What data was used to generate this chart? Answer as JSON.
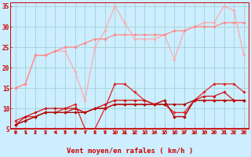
{
  "x": [
    0,
    1,
    2,
    3,
    4,
    5,
    6,
    7,
    8,
    9,
    10,
    11,
    12,
    13,
    14,
    15,
    16,
    17,
    18,
    19,
    20,
    21,
    22,
    23
  ],
  "series": [
    {
      "color": "#ffaaaa",
      "linewidth": 0.9,
      "marker": "D",
      "markersize": 1.8,
      "values": [
        15,
        16,
        23,
        23,
        24,
        24,
        19,
        12,
        25,
        29,
        35,
        31,
        27,
        27,
        27,
        28,
        22,
        29,
        30,
        31,
        31,
        35,
        34,
        23
      ]
    },
    {
      "color": "#ff8888",
      "linewidth": 0.9,
      "marker": "D",
      "markersize": 1.8,
      "values": [
        15,
        16,
        23,
        23,
        24,
        25,
        25,
        26,
        27,
        27,
        28,
        28,
        28,
        28,
        28,
        28,
        29,
        29,
        30,
        30,
        30,
        31,
        31,
        31
      ]
    },
    {
      "color": "#dd2222",
      "linewidth": 0.9,
      "marker": "D",
      "markersize": 1.8,
      "values": [
        7,
        8,
        8,
        9,
        9,
        10,
        11,
        5,
        5,
        10,
        16,
        16,
        14,
        12,
        11,
        11,
        9,
        9,
        12,
        14,
        16,
        16,
        16,
        14
      ]
    },
    {
      "color": "#cc1111",
      "linewidth": 0.9,
      "marker": "D",
      "markersize": 1.8,
      "values": [
        6,
        8,
        9,
        10,
        10,
        10,
        10,
        9,
        10,
        11,
        12,
        12,
        12,
        12,
        11,
        12,
        8,
        8,
        12,
        13,
        13,
        14,
        12,
        12
      ]
    },
    {
      "color": "#aa0000",
      "linewidth": 0.9,
      "marker": "D",
      "markersize": 1.8,
      "values": [
        6,
        7,
        8,
        9,
        9,
        9,
        9,
        9,
        10,
        10,
        11,
        11,
        11,
        11,
        11,
        11,
        11,
        11,
        12,
        12,
        12,
        12,
        12,
        12
      ]
    },
    {
      "color": "#bb1111",
      "linewidth": 0.9,
      "marker": "D",
      "markersize": 1.8,
      "values": [
        6,
        7,
        8,
        9,
        9,
        9,
        10,
        9,
        10,
        10,
        11,
        11,
        11,
        11,
        11,
        12,
        8,
        8,
        12,
        12,
        12,
        12,
        12,
        12
      ]
    }
  ],
  "ylim": [
    5,
    36
  ],
  "yticks": [
    5,
    10,
    15,
    20,
    25,
    30,
    35
  ],
  "xlim": [
    -0.5,
    23.5
  ],
  "xlabel": "Vent moyen/en rafales ( km/h )",
  "xlabel_fontsize": 6.5,
  "xlabel_color": "#cc0000",
  "tick_color": "#cc0000",
  "axis_color": "#cc0000",
  "bg_color": "#cceeff",
  "grid_color": "#99cccc",
  "arrow_color": "#cc0000",
  "tick_fontsize": 5.0,
  "ytick_fontsize": 5.5
}
